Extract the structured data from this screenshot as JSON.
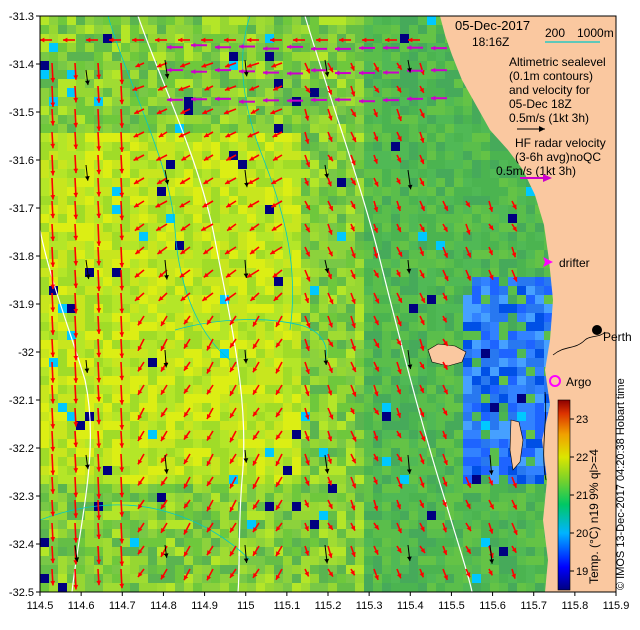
{
  "map": {
    "date": "05-Dec-2017",
    "time": "18:16Z",
    "contour_legend": {
      "values": [
        "200",
        "1000m"
      ]
    },
    "altimetry_legend": [
      "Altimetric sealevel",
      "(0.1m contours)",
      "and velocity for",
      "05-Dec 18Z",
      "0.5m/s (1kt 3h)"
    ],
    "hf_radar_legend": [
      "HF radar velocity",
      "(3-6h avg)noQC",
      "0.5m/s (1kt 3h)"
    ],
    "drifter_label": "drifter",
    "argo_label": "Argo",
    "city_label": "Perth",
    "credit": "© IMOS 13-Dec-2017 04:20:38 Hobart time",
    "colors": {
      "land": "#fac8a0",
      "sst_arrow": "#ff0000",
      "hf_arrow": "#cc00cc",
      "alt_arrow": "#000000",
      "contour": "#00c8c8",
      "argo": "#ff00ff"
    },
    "extent": {
      "lon": [
        114.5,
        115.9
      ],
      "lat": [
        -32.5,
        -31.3
      ]
    }
  },
  "axes": {
    "x_ticks": [
      "114.5",
      "114.6",
      "114.7",
      "114.8",
      "114.9",
      "115",
      "115.1",
      "115.2",
      "115.3",
      "115.4",
      "115.5",
      "115.6",
      "115.7",
      "115.8",
      "115.9"
    ],
    "y_ticks": [
      "-31.3",
      "-31.4",
      "-31.5",
      "-31.6",
      "-31.7",
      "-31.8",
      "-31.9",
      "-32",
      "-32.1",
      "-32.2",
      "-32.3",
      "-32.4",
      "-32.5"
    ]
  },
  "colorbar": {
    "label": "Temp. (°C) n19 9% ql>=4",
    "ticks": [
      "23",
      "22",
      "21",
      "20",
      "19"
    ],
    "range": [
      18.5,
      23.5
    ]
  }
}
